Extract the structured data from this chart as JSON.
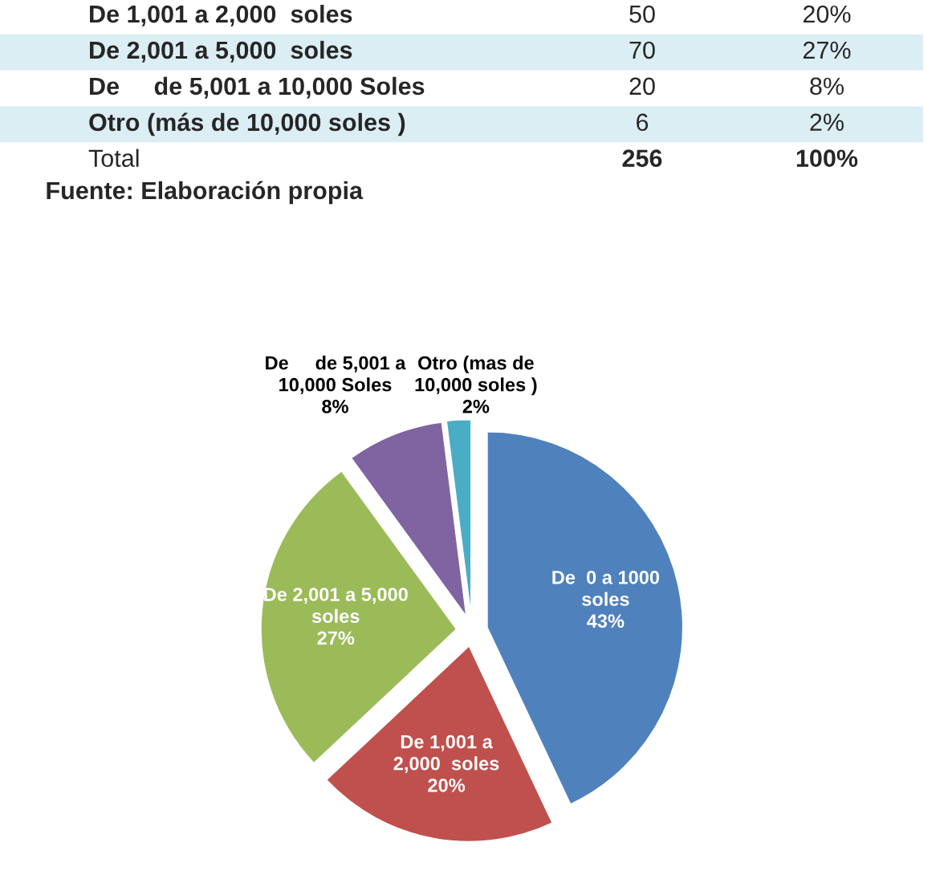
{
  "chart_data": [
    {
      "type": "other",
      "categories": [
        "De 1,001 a 2,000  soles",
        "De 2,001 a 5,000  soles",
        "De     de 5,001 a 10,000 Soles",
        "Otro (más de 10,000 soles )",
        "Total"
      ],
      "values": [
        50,
        70,
        20,
        6,
        256
      ],
      "data_labels": true,
      "annotations": [
        "20%",
        "27%",
        "8%",
        "2%",
        "100%",
        "Fuente: Elaboración propia"
      ]
    },
    {
      "type": "pie",
      "categories": [
        "De  0 a 1000\nsoles",
        "De 1,001 a\n2,000  soles",
        "De 2,001 a 5,000\nsoles",
        "De     de 5,001 a\n10,000 Soles",
        "Otro (mas de\n10,000 soles )"
      ],
      "values": [
        43,
        20,
        27,
        8,
        2
      ],
      "value_labels": [
        "43%",
        "20%",
        "27%",
        "8%",
        "2%"
      ],
      "colors": [
        "#4f81bd",
        "#c0504d",
        "#9bbb59",
        "#8064a2",
        "#4bacc6"
      ]
    }
  ]
}
